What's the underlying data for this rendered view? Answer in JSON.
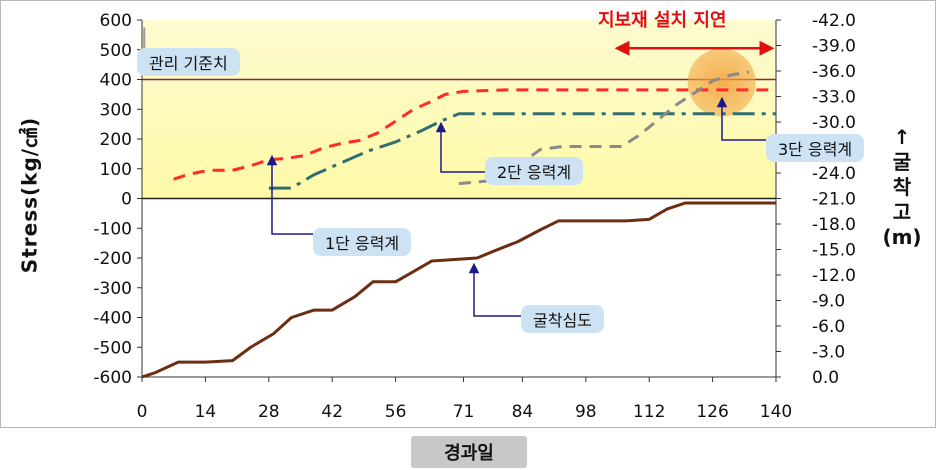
{
  "chart_data": {
    "type": "line",
    "xlabel": "경과일",
    "ylabel_left": "Stress(kg/㎠)",
    "ylabel_right": [
      "↑",
      "굴",
      "착",
      "고",
      "(m)"
    ],
    "x_ticks": [
      "0",
      "14",
      "28",
      "42",
      "56",
      "71",
      "84",
      "98",
      "112",
      "126",
      "140"
    ],
    "y_left_ticks": [
      "600",
      "500",
      "400",
      "300",
      "200",
      "100",
      "0",
      "-100",
      "-200",
      "-300",
      "-400",
      "-500",
      "-600"
    ],
    "y_right_ticks": [
      "-42.0",
      "-39.0",
      "-36.0",
      "-33.0",
      "-30.0",
      "-27.0",
      "-24.0",
      "-21.0",
      "-18.0",
      "-15.0",
      "-12.0",
      "-9.0",
      "-6.0",
      "-3.0",
      "0.0"
    ],
    "xlim": [
      0,
      140
    ],
    "ylim_left": [
      -600,
      600
    ],
    "ylim_right": [
      -42,
      0
    ],
    "management_threshold": {
      "label": "관리 기준치",
      "value": 400,
      "color": "#8b2252"
    },
    "series": [
      {
        "name": "1단 응력계",
        "color": "#2f6f73",
        "style": "dashdot",
        "x": [
          28,
          33,
          38,
          44,
          50,
          56,
          62,
          66,
          70,
          80,
          90,
          100,
          110,
          120,
          130,
          140
        ],
        "y": [
          35,
          35,
          80,
          120,
          160,
          190,
          230,
          260,
          285,
          285,
          285,
          285,
          285,
          285,
          285,
          285
        ]
      },
      {
        "name": "2단 응력계",
        "color": "#ff2a2a",
        "style": "dash",
        "x": [
          7,
          10,
          13,
          16,
          20,
          24,
          28,
          32,
          36,
          40,
          44,
          48,
          52,
          56,
          60,
          63,
          67,
          71,
          80,
          90,
          100,
          110,
          120,
          130,
          140
        ],
        "y": [
          65,
          80,
          90,
          95,
          95,
          110,
          130,
          135,
          145,
          170,
          185,
          195,
          220,
          260,
          300,
          320,
          350,
          360,
          365,
          365,
          365,
          365,
          365,
          365,
          365
        ]
      },
      {
        "name": "3단 응력계",
        "color": "#8a8a8a",
        "style": "dash",
        "x": [
          70,
          77,
          82,
          88,
          93,
          100,
          106,
          110,
          114,
          118,
          122,
          126,
          130,
          134
        ],
        "y": [
          50,
          60,
          100,
          165,
          175,
          175,
          175,
          215,
          265,
          315,
          355,
          395,
          415,
          425
        ]
      },
      {
        "name": "굴착심도",
        "color": "#6b2e12",
        "style": "solid",
        "x": [
          0,
          3,
          8,
          14,
          20,
          24,
          29,
          33,
          38,
          42,
          47,
          51,
          56,
          60,
          64,
          69,
          74,
          78,
          83,
          88,
          92,
          97,
          102,
          107,
          112,
          116,
          120,
          126,
          132,
          140
        ],
        "y": [
          -600,
          -585,
          -550,
          -550,
          -545,
          -500,
          -455,
          -400,
          -375,
          -375,
          -330,
          -280,
          -280,
          -245,
          -210,
          -205,
          -200,
          -175,
          -145,
          -105,
          -75,
          -75,
          -75,
          -75,
          -70,
          -35,
          -15,
          -15,
          -15,
          -15
        ]
      }
    ],
    "annotations": [
      {
        "text": "지보재 설치 지연",
        "color": "#e01010"
      }
    ],
    "grid": false,
    "background_upper": "#fefcc8",
    "background_lower": "#ffffff"
  },
  "callouts": {
    "threshold": "관리 기준치",
    "stage1": "1단 응력계",
    "stage2": "2단 응력계",
    "stage3": "3단 응력계",
    "depth": "굴착심도"
  },
  "delay_label": "지보재 설치 지연",
  "xlabel": "경과일"
}
